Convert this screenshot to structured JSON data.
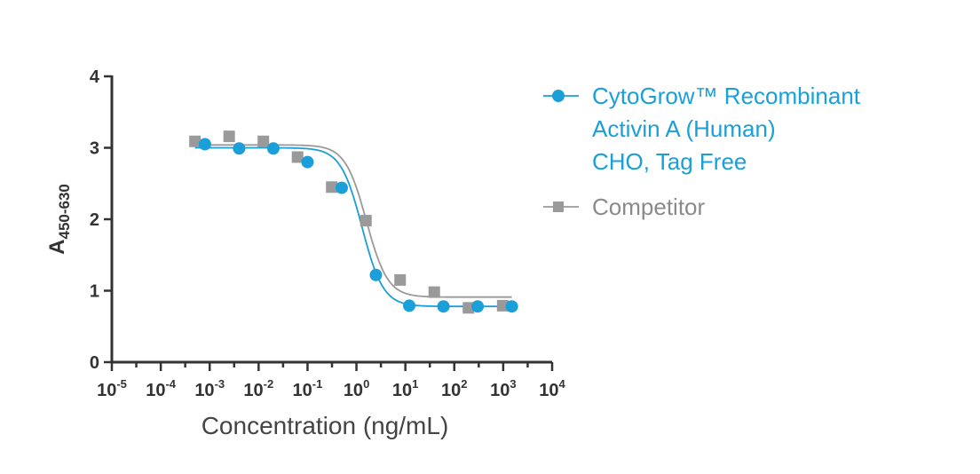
{
  "chart_data": {
    "type": "scatter",
    "xlabel": "Concentration (ng/mL)",
    "ylabel_main": "A",
    "ylabel_sub": "450-630",
    "x_scale": "log",
    "xlim": [
      1e-05,
      10000
    ],
    "ylim": [
      0,
      4
    ],
    "y_ticks": [
      "0",
      "1",
      "2",
      "3",
      "4"
    ],
    "x_ticks": [
      {
        "base": "10",
        "exp": "-5"
      },
      {
        "base": "10",
        "exp": "-4"
      },
      {
        "base": "10",
        "exp": "-3"
      },
      {
        "base": "10",
        "exp": "-2"
      },
      {
        "base": "10",
        "exp": "-1"
      },
      {
        "base": "10",
        "exp": "0"
      },
      {
        "base": "10",
        "exp": "1"
      },
      {
        "base": "10",
        "exp": "2"
      },
      {
        "base": "10",
        "exp": "3"
      },
      {
        "base": "10",
        "exp": "4"
      }
    ],
    "legend_position": "right",
    "series": [
      {
        "name_lines": [
          "CytoGrow™ Recombinant",
          "Activin A (Human)",
          "CHO, Tag Free"
        ],
        "color": "#1a9fd8",
        "marker": "circle",
        "fit": {
          "top": 3.0,
          "bottom": 0.78,
          "ec50": 1.3,
          "hill": 2.0
        },
        "points": [
          {
            "x": 0.0008,
            "y": 3.05
          },
          {
            "x": 0.004,
            "y": 2.99
          },
          {
            "x": 0.02,
            "y": 2.99
          },
          {
            "x": 0.1,
            "y": 2.8
          },
          {
            "x": 0.5,
            "y": 2.44
          },
          {
            "x": 2.5,
            "y": 1.22
          },
          {
            "x": 12,
            "y": 0.79
          },
          {
            "x": 60,
            "y": 0.78
          },
          {
            "x": 300,
            "y": 0.78
          },
          {
            "x": 1500,
            "y": 0.78
          }
        ]
      },
      {
        "name_lines": [
          "Competitor"
        ],
        "color": "#9a9a9a",
        "marker": "square",
        "fit": {
          "top": 3.04,
          "bottom": 0.91,
          "ec50": 1.6,
          "hill": 2.0
        },
        "points": [
          {
            "x": 0.0005,
            "y": 3.09
          },
          {
            "x": 0.0025,
            "y": 3.16
          },
          {
            "x": 0.0125,
            "y": 3.09
          },
          {
            "x": 0.0625,
            "y": 2.87
          },
          {
            "x": 0.3125,
            "y": 2.45
          },
          {
            "x": 1.5625,
            "y": 1.98
          },
          {
            "x": 7.8,
            "y": 1.15
          },
          {
            "x": 39,
            "y": 0.98
          },
          {
            "x": 195,
            "y": 0.76
          },
          {
            "x": 977,
            "y": 0.79
          }
        ]
      }
    ]
  }
}
